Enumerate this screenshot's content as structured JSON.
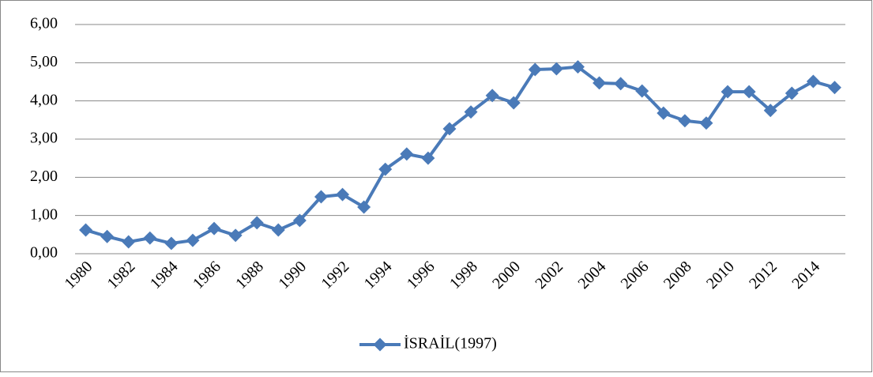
{
  "chart_data": {
    "type": "line",
    "categories": [
      "1980",
      null,
      "1982",
      null,
      "1984",
      null,
      "1986",
      null,
      "1988",
      null,
      "1990",
      null,
      "1992",
      null,
      "1994",
      null,
      "1996",
      null,
      "1998",
      null,
      "2000",
      null,
      "2002",
      null,
      "2004",
      null,
      "2006",
      null,
      "2008",
      null,
      "2010",
      null,
      "2012",
      null,
      "2014",
      null
    ],
    "series": [
      {
        "name": "İSRAİL(1997)",
        "color": "#4a7ab8",
        "values": [
          0.62,
          0.45,
          0.31,
          0.41,
          0.27,
          0.35,
          0.66,
          0.48,
          0.81,
          0.62,
          0.87,
          1.49,
          1.55,
          1.22,
          2.21,
          2.61,
          2.5,
          3.27,
          3.71,
          4.14,
          3.95,
          4.82,
          4.84,
          4.89,
          4.47,
          4.45,
          4.26,
          3.68,
          3.48,
          3.42,
          4.24,
          4.24,
          3.75,
          4.2,
          4.51,
          4.35
        ]
      }
    ],
    "ylim": [
      0,
      6
    ],
    "yticks": [
      {
        "value": 0,
        "label": "0,00"
      },
      {
        "value": 1,
        "label": "1,00"
      },
      {
        "value": 2,
        "label": "2,00"
      },
      {
        "value": 3,
        "label": "3,00"
      },
      {
        "value": 4,
        "label": "4,00"
      },
      {
        "value": 5,
        "label": "5,00"
      },
      {
        "value": 6,
        "label": "6,00"
      }
    ],
    "grid": true,
    "legend": "bottom"
  }
}
